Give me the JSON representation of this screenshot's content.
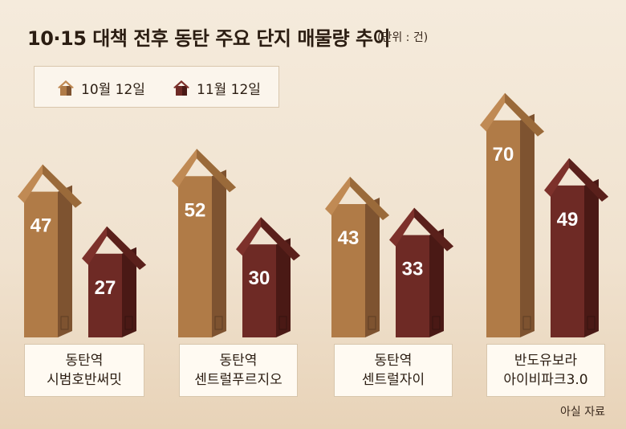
{
  "chart_data": {
    "type": "bar",
    "title": "10·15 대책 전후 동탄 주요 단지 매물량 추이",
    "unit_note": "(단위 : 건)",
    "categories": [
      "동탄역\n시범호반써밋",
      "동탄역\n센트럴푸르지오",
      "동탄역\n센트럴자이",
      "반도유보라\n아이비파크3.0"
    ],
    "series": [
      {
        "name": "10월 12일",
        "values": [
          47,
          52,
          43,
          70
        ],
        "color": "#b07b47",
        "side": "#7e5330",
        "roof": "#c08a54",
        "roof_dark": "#9a6a3a"
      },
      {
        "name": "11월 12일",
        "values": [
          27,
          30,
          33,
          49
        ],
        "color": "#6e2a25",
        "side": "#4a1915",
        "roof": "#7d312b",
        "roof_dark": "#5a201b"
      }
    ],
    "source": "아실 자료"
  }
}
